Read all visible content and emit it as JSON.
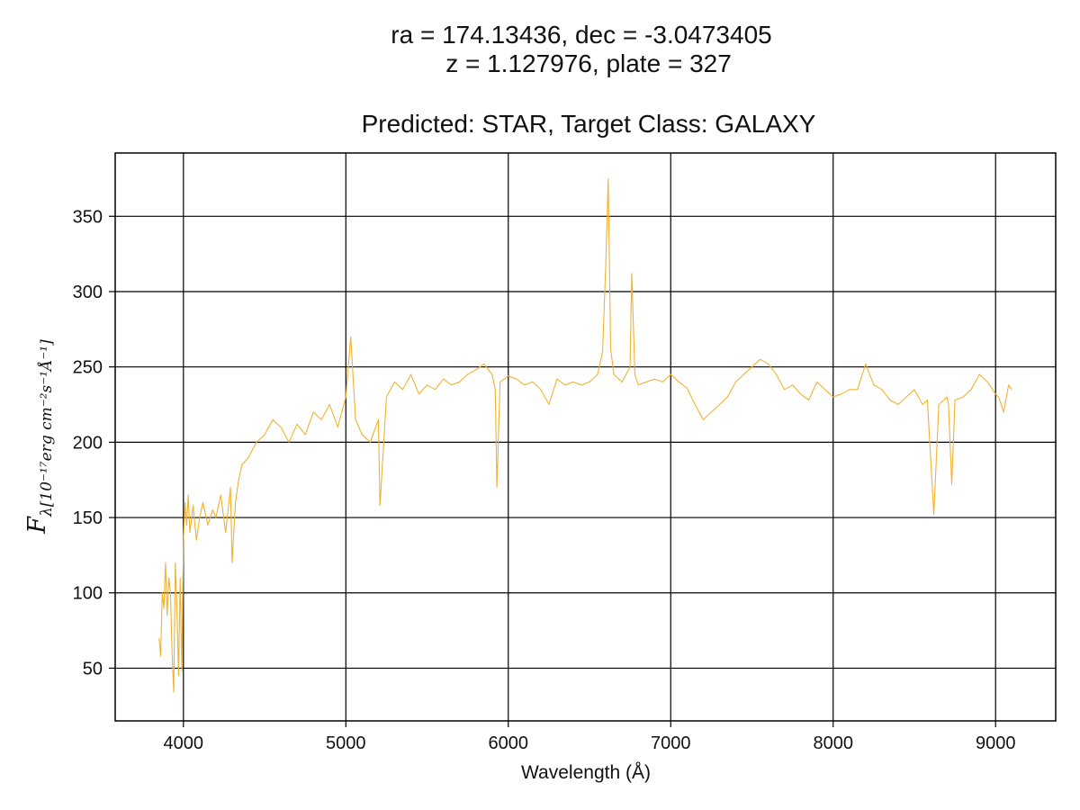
{
  "chart_data": {
    "type": "line",
    "title_line1": "ra = 174.13436, dec = -3.0473405",
    "title_line2": "z = 1.127976, plate = 327",
    "subtitle": "Predicted: STAR, Target Class: GALAXY",
    "xlabel": "Wavelength (Å)",
    "ylabel_main": "F",
    "ylabel_sub": "λ[10⁻¹⁷erg cm⁻²s⁻¹Å⁻¹]",
    "xlim": [
      3580,
      9370
    ],
    "ylim": [
      15,
      392
    ],
    "xticks": [
      4000,
      5000,
      6000,
      7000,
      8000,
      9000
    ],
    "yticks": [
      50,
      100,
      150,
      200,
      250,
      300,
      350
    ],
    "grid": true,
    "line_color": "#f0b232",
    "series": [
      {
        "x": [
          3850,
          3860,
          3870,
          3880,
          3890,
          3900,
          3910,
          3920,
          3930,
          3940,
          3950,
          3960,
          3970,
          3980,
          3990,
          4000,
          4010,
          4020,
          4030,
          4040,
          4060,
          4080,
          4100,
          4120,
          4150,
          4180,
          4200,
          4230,
          4260,
          4290,
          4300,
          4320,
          4340,
          4360,
          4400,
          4450,
          4500,
          4550,
          4600,
          4650,
          4700,
          4750,
          4800,
          4850,
          4900,
          4950,
          5000,
          5030,
          5060,
          5100,
          5150,
          5200,
          5210,
          5250,
          5300,
          5350,
          5400,
          5450,
          5500,
          5550,
          5600,
          5650,
          5700,
          5750,
          5800,
          5850,
          5900,
          5920,
          5930,
          5950,
          6000,
          6050,
          6100,
          6150,
          6200,
          6250,
          6300,
          6350,
          6400,
          6450,
          6500,
          6550,
          6580,
          6600,
          6615,
          6630,
          6650,
          6700,
          6750,
          6760,
          6780,
          6800,
          6850,
          6900,
          6950,
          7000,
          7050,
          7100,
          7150,
          7200,
          7250,
          7300,
          7350,
          7400,
          7450,
          7500,
          7550,
          7600,
          7650,
          7700,
          7750,
          7800,
          7850,
          7900,
          7950,
          8000,
          8050,
          8100,
          8150,
          8200,
          8250,
          8300,
          8350,
          8400,
          8450,
          8500,
          8550,
          8580,
          8600,
          8620,
          8650,
          8700,
          8710,
          8730,
          8750,
          8800,
          8850,
          8900,
          8950,
          9000,
          9020,
          9050,
          9080,
          9100
        ],
        "y": [
          70,
          58,
          100,
          90,
          120,
          85,
          110,
          100,
          60,
          34,
          120,
          90,
          45,
          110,
          48,
          135,
          160,
          145,
          165,
          140,
          158,
          135,
          150,
          160,
          145,
          155,
          150,
          165,
          140,
          170,
          120,
          160,
          175,
          185,
          190,
          200,
          205,
          215,
          210,
          200,
          212,
          205,
          220,
          215,
          225,
          210,
          230,
          270,
          215,
          205,
          200,
          215,
          158,
          230,
          240,
          235,
          245,
          232,
          238,
          235,
          242,
          238,
          240,
          245,
          248,
          252,
          245,
          235,
          170,
          240,
          244,
          242,
          238,
          240,
          235,
          225,
          242,
          238,
          240,
          238,
          240,
          245,
          260,
          318,
          375,
          262,
          245,
          240,
          250,
          312,
          245,
          238,
          240,
          242,
          240,
          245,
          240,
          236,
          225,
          215,
          220,
          225,
          230,
          240,
          245,
          250,
          255,
          252,
          245,
          235,
          238,
          232,
          228,
          240,
          235,
          230,
          232,
          235,
          235,
          252,
          238,
          235,
          228,
          225,
          230,
          235,
          225,
          228,
          190,
          152,
          225,
          230,
          225,
          172,
          228,
          230,
          235,
          245,
          240,
          232,
          230,
          220,
          238,
          235
        ]
      }
    ]
  }
}
